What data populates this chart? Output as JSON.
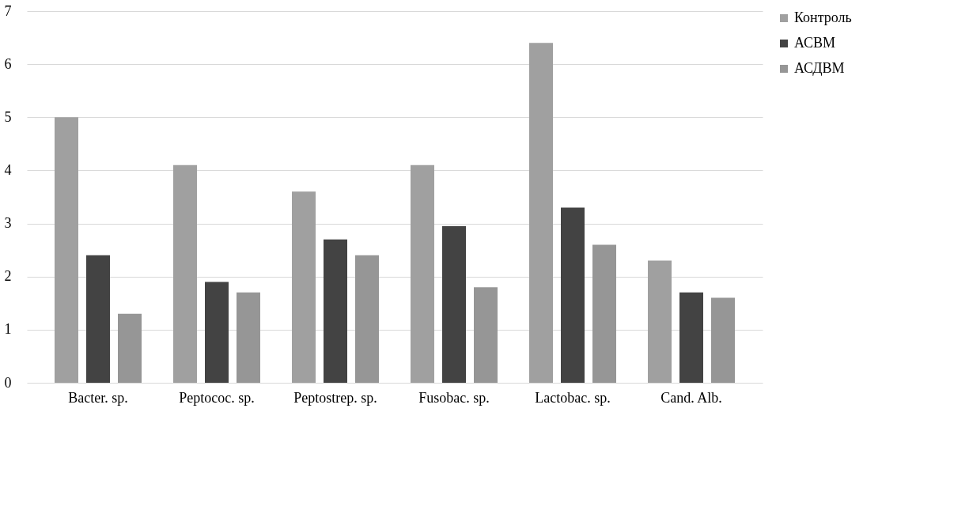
{
  "chart_data": {
    "type": "bar",
    "categories": [
      "Bacter. sp.",
      "Peptococ. sp.",
      "Peptostrep. sp.",
      "Fusobac. sp.",
      "Lactobac. sp.",
      "Cand. Alb."
    ],
    "series": [
      {
        "name": "Контроль",
        "color": "#a0a0a0",
        "values": [
          5.0,
          4.1,
          3.6,
          4.1,
          6.4,
          2.3
        ]
      },
      {
        "name": "АСВМ",
        "color": "#434343",
        "values": [
          2.4,
          1.9,
          2.7,
          2.95,
          3.3,
          1.7
        ]
      },
      {
        "name": "АСДВМ",
        "color": "#969696",
        "values": [
          1.3,
          1.7,
          2.4,
          1.8,
          2.6,
          1.6
        ]
      }
    ],
    "ylim": [
      0,
      7
    ],
    "yticks": [
      0,
      1,
      2,
      3,
      4,
      5,
      6,
      7
    ],
    "grid": "y",
    "legend": "right"
  }
}
